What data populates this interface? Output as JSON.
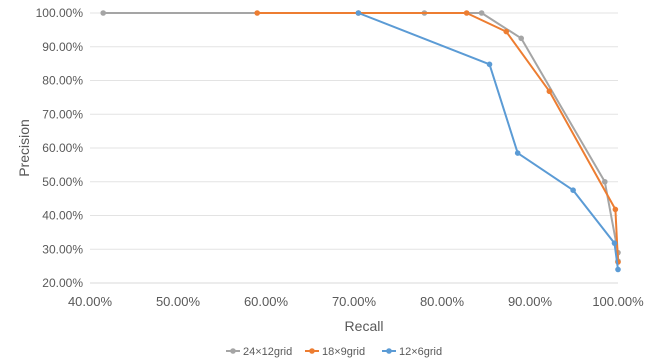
{
  "chart_data": {
    "type": "line",
    "title": "",
    "xlabel": "Recall",
    "ylabel": "Precision",
    "xlim": [
      0.4,
      1.0
    ],
    "ylim": [
      0.2,
      1.0
    ],
    "x_ticks": [
      "40.00%",
      "50.00%",
      "60.00%",
      "70.00%",
      "80.00%",
      "90.00%",
      "100.00%"
    ],
    "y_ticks": [
      "20.00%",
      "30.00%",
      "40.00%",
      "50.00%",
      "60.00%",
      "70.00%",
      "80.00%",
      "90.00%",
      "100.00%"
    ],
    "grid": "horizontal",
    "legend_position": "bottom",
    "series": [
      {
        "name": "24×12grid",
        "color": "#a5a5a5",
        "x": [
          0.415,
          0.78,
          0.845,
          0.89,
          0.985,
          1.0,
          1.0
        ],
        "y": [
          1.0,
          1.0,
          1.0,
          0.925,
          0.5,
          0.29,
          0.265
        ]
      },
      {
        "name": "18×9grid",
        "color": "#ed7d31",
        "x": [
          0.59,
          0.705,
          0.828,
          0.873,
          0.922,
          0.997,
          1.0
        ],
        "y": [
          1.0,
          1.0,
          1.0,
          0.945,
          0.768,
          0.418,
          0.262
        ]
      },
      {
        "name": "12×6grid",
        "color": "#5b9bd5",
        "x": [
          0.705,
          0.854,
          0.886,
          0.949,
          0.996,
          1.0
        ],
        "y": [
          1.0,
          0.848,
          0.585,
          0.475,
          0.318,
          0.24
        ]
      }
    ]
  }
}
